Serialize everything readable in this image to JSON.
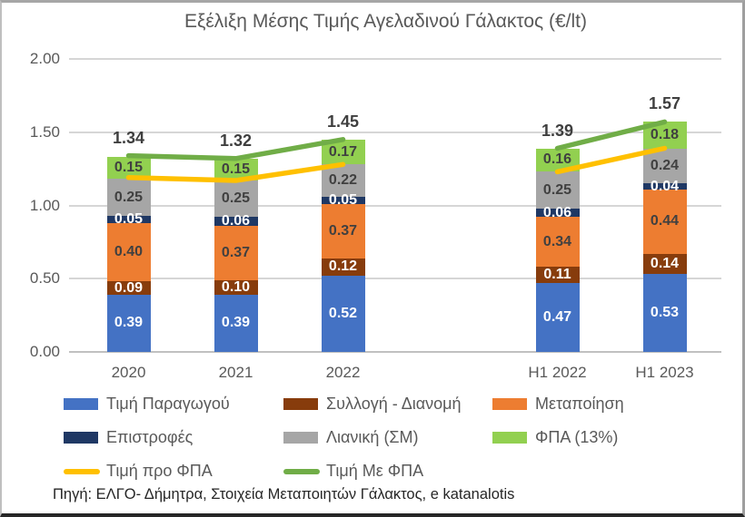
{
  "title": "Εξέλιξη Μέσης Τιμής Αγελαδινού Γάλακτος (€/lt)",
  "source": "Πηγή: ΕΛΓΟ- Δήμητρα, Στοιχεία Μεταποιητών Γάλακτος, e katanalotis",
  "chart_data": {
    "type": "bar",
    "stacked": true,
    "title": "Εξέλιξη Μέσης Τιμής Αγελαδινού Γάλακτος (€/lt)",
    "categories": [
      "2020",
      "2021",
      "2022",
      "",
      "H1 2022",
      "H1 2023"
    ],
    "series": [
      {
        "name": "Τιμή Παραγωγού",
        "color": "#4472C4",
        "label_color": "#ffffff",
        "values": [
          0.39,
          0.39,
          0.52,
          null,
          0.47,
          0.53
        ]
      },
      {
        "name": "Συλλογή - Διανομή",
        "color": "#873C0C",
        "label_color": "#ffffff",
        "values": [
          0.09,
          0.1,
          0.12,
          null,
          0.11,
          0.14
        ]
      },
      {
        "name": "Μεταποίηση",
        "color": "#ED7D31",
        "label_color": "#404040",
        "values": [
          0.4,
          0.37,
          0.37,
          null,
          0.34,
          0.44
        ]
      },
      {
        "name": "Επιστροφές",
        "color": "#1F3864",
        "label_color": "#ffffff",
        "values": [
          0.05,
          0.06,
          0.05,
          null,
          0.06,
          0.04
        ]
      },
      {
        "name": "Λιανική (ΣΜ)",
        "color": "#A6A6A6",
        "label_color": "#404040",
        "values": [
          0.25,
          0.25,
          0.22,
          null,
          0.25,
          0.24
        ]
      },
      {
        "name": "ΦΠΑ (13%)",
        "color": "#92D050",
        "label_color": "#404040",
        "values": [
          0.15,
          0.15,
          0.17,
          null,
          0.16,
          0.18
        ]
      }
    ],
    "totals": [
      1.34,
      1.32,
      1.45,
      null,
      1.39,
      1.57
    ],
    "lines": [
      {
        "name": "Τιμή προ ΦΠΑ",
        "color": "#FFC000",
        "values": [
          1.19,
          1.17,
          1.28,
          null,
          1.23,
          1.39
        ]
      },
      {
        "name": "Τιμή Με ΦΠΑ",
        "color": "#70AD47",
        "values": [
          1.34,
          1.32,
          1.45,
          null,
          1.39,
          1.57
        ]
      }
    ],
    "yticks": [
      "2.00",
      "1.50",
      "1.00",
      "0.50",
      "0.00"
    ],
    "ylim": [
      0,
      2.0
    ],
    "grid": true,
    "legend_position": "bottom"
  }
}
